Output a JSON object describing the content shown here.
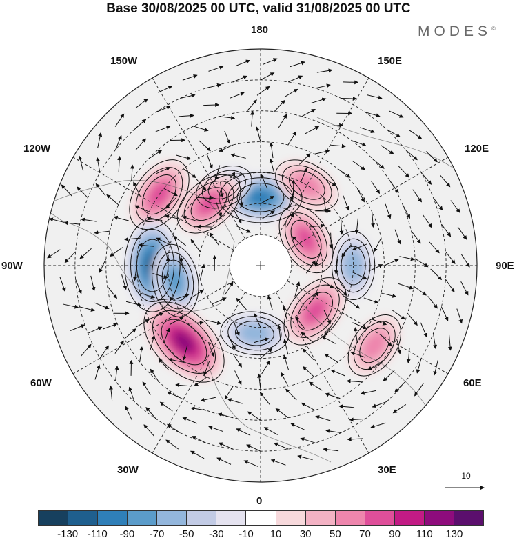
{
  "title": "Base 30/08/2025 00 UTC, valid 31/08/2025 00 UTC",
  "brand": "MODES",
  "brand_mark": "©",
  "longitude_labels": {
    "top": "180",
    "bottom": "0",
    "left": "90W",
    "right": "90E",
    "upper_left_1": "150W",
    "upper_left_2": "120W",
    "upper_right_1": "150E",
    "upper_right_2": "120E",
    "lower_left_1": "60W",
    "lower_left_2": "30W",
    "lower_right_1": "60E",
    "lower_right_2": "30E"
  },
  "reference_vector": "10",
  "colorbar": {
    "ticks": [
      "-130",
      "-110",
      "-90",
      "-70",
      "-50",
      "-30",
      "-10",
      "10",
      "30",
      "50",
      "70",
      "90",
      "110",
      "130"
    ],
    "colors": [
      "#17405e",
      "#1f5f8e",
      "#2f7fb8",
      "#5b9cca",
      "#93b6dc",
      "#c2cbe5",
      "#e5e3f0",
      "#ffffff",
      "#f7d9dc",
      "#f3b2c4",
      "#ee86ad",
      "#df4f9a",
      "#c21b85",
      "#8e0c7c",
      "#5b0f6d"
    ]
  },
  "anomaly_centers": [
    {
      "name": "pacific-low",
      "lon": 180,
      "lat": 68,
      "value": -90
    },
    {
      "name": "pacific-small-low",
      "lon": -155,
      "lat": 62,
      "value": -40
    },
    {
      "name": "east-siberia-high",
      "lon": 150,
      "lat": 60,
      "value": 60
    },
    {
      "name": "alaska-canada-high",
      "lon": -125,
      "lat": 50,
      "value": 80
    },
    {
      "name": "yukon-high",
      "lon": -140,
      "lat": 64,
      "value": 70
    },
    {
      "name": "central-siberia-high",
      "lon": 120,
      "lat": 73,
      "value": 70
    },
    {
      "name": "hudson-low",
      "lon": -90,
      "lat": 55,
      "value": -110
    },
    {
      "name": "labrador-low",
      "lon": -80,
      "lat": 62,
      "value": -70
    },
    {
      "name": "west-siberia-low",
      "lon": 90,
      "lat": 60,
      "value": -60
    },
    {
      "name": "north-atlantic-high",
      "lon": -45,
      "lat": 55,
      "value": 120
    },
    {
      "name": "greenland-sea-low",
      "lon": -5,
      "lat": 68,
      "value": -60
    },
    {
      "name": "kara-high",
      "lon": 50,
      "lat": 67,
      "value": 80
    },
    {
      "name": "central-asia-high",
      "lon": 55,
      "lat": 45,
      "value": 60
    }
  ]
}
